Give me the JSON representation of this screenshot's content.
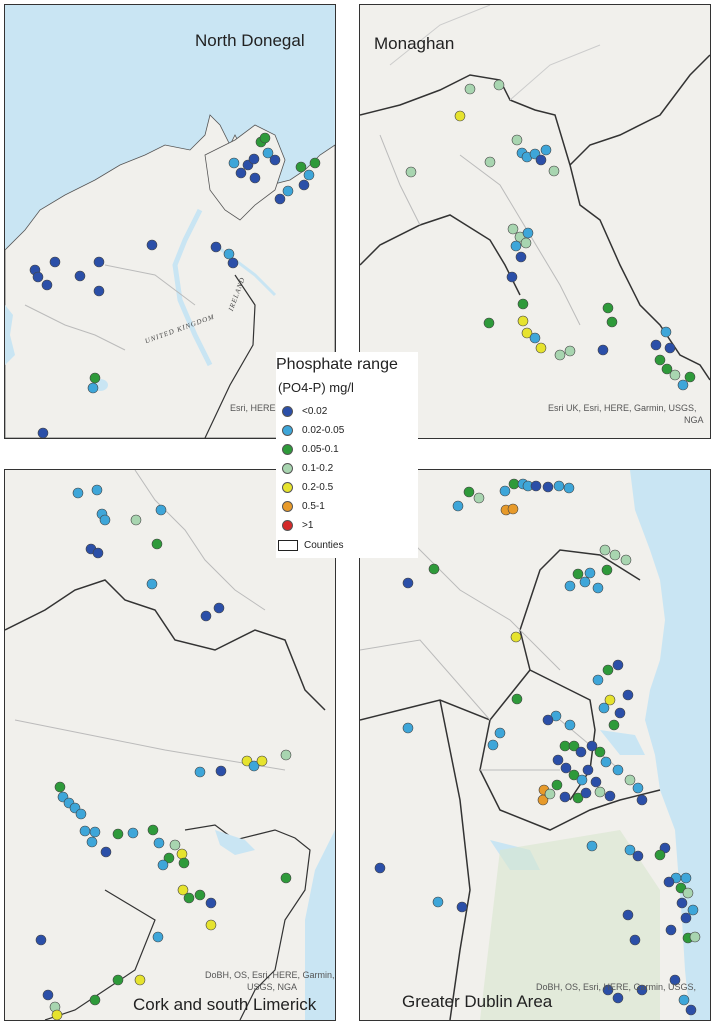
{
  "panels": {
    "north_donegal": {
      "title": "North Donegal",
      "attribution": "Esri, HERE, Garmin, FA",
      "labels": {
        "ireland": "IRELAND",
        "uk": "UNITED KINGDOM"
      }
    },
    "monaghan": {
      "title": "Monaghan",
      "attribution": "Esri UK, Esri, HERE, Garmin, USGS,",
      "attribution2": "NGA"
    },
    "cork": {
      "title": "Cork and south Limerick",
      "attribution": "DoBH, OS, Esri, HERE, Garmin,",
      "attribution2": "USGS, NGA"
    },
    "dublin": {
      "title": "Greater Dublin Area",
      "attribution": "DoBH, OS, Esri, HERE, Garmin, USGS,"
    }
  },
  "legend": {
    "title": "Phosphate range",
    "subtitle": "(PO4-P) mg/l",
    "items": [
      {
        "label": "<0.02",
        "color": "#2b4fa8"
      },
      {
        "label": "0.02-0.05",
        "color": "#3ea6d9"
      },
      {
        "label": "0.05-0.1",
        "color": "#2e9a3a"
      },
      {
        "label": "0.1-0.2",
        "color": "#a8d5b0"
      },
      {
        "label": "0.2-0.5",
        "color": "#e6e32e"
      },
      {
        "label": "0.5-1",
        "color": "#e79a2a"
      },
      {
        "label": ">1",
        "color": "#d42a2a"
      }
    ],
    "counties_label": "Counties"
  },
  "colors": {
    "sea": "#c9e5f3",
    "land": "#f1f0ec",
    "border": "#333333"
  }
}
